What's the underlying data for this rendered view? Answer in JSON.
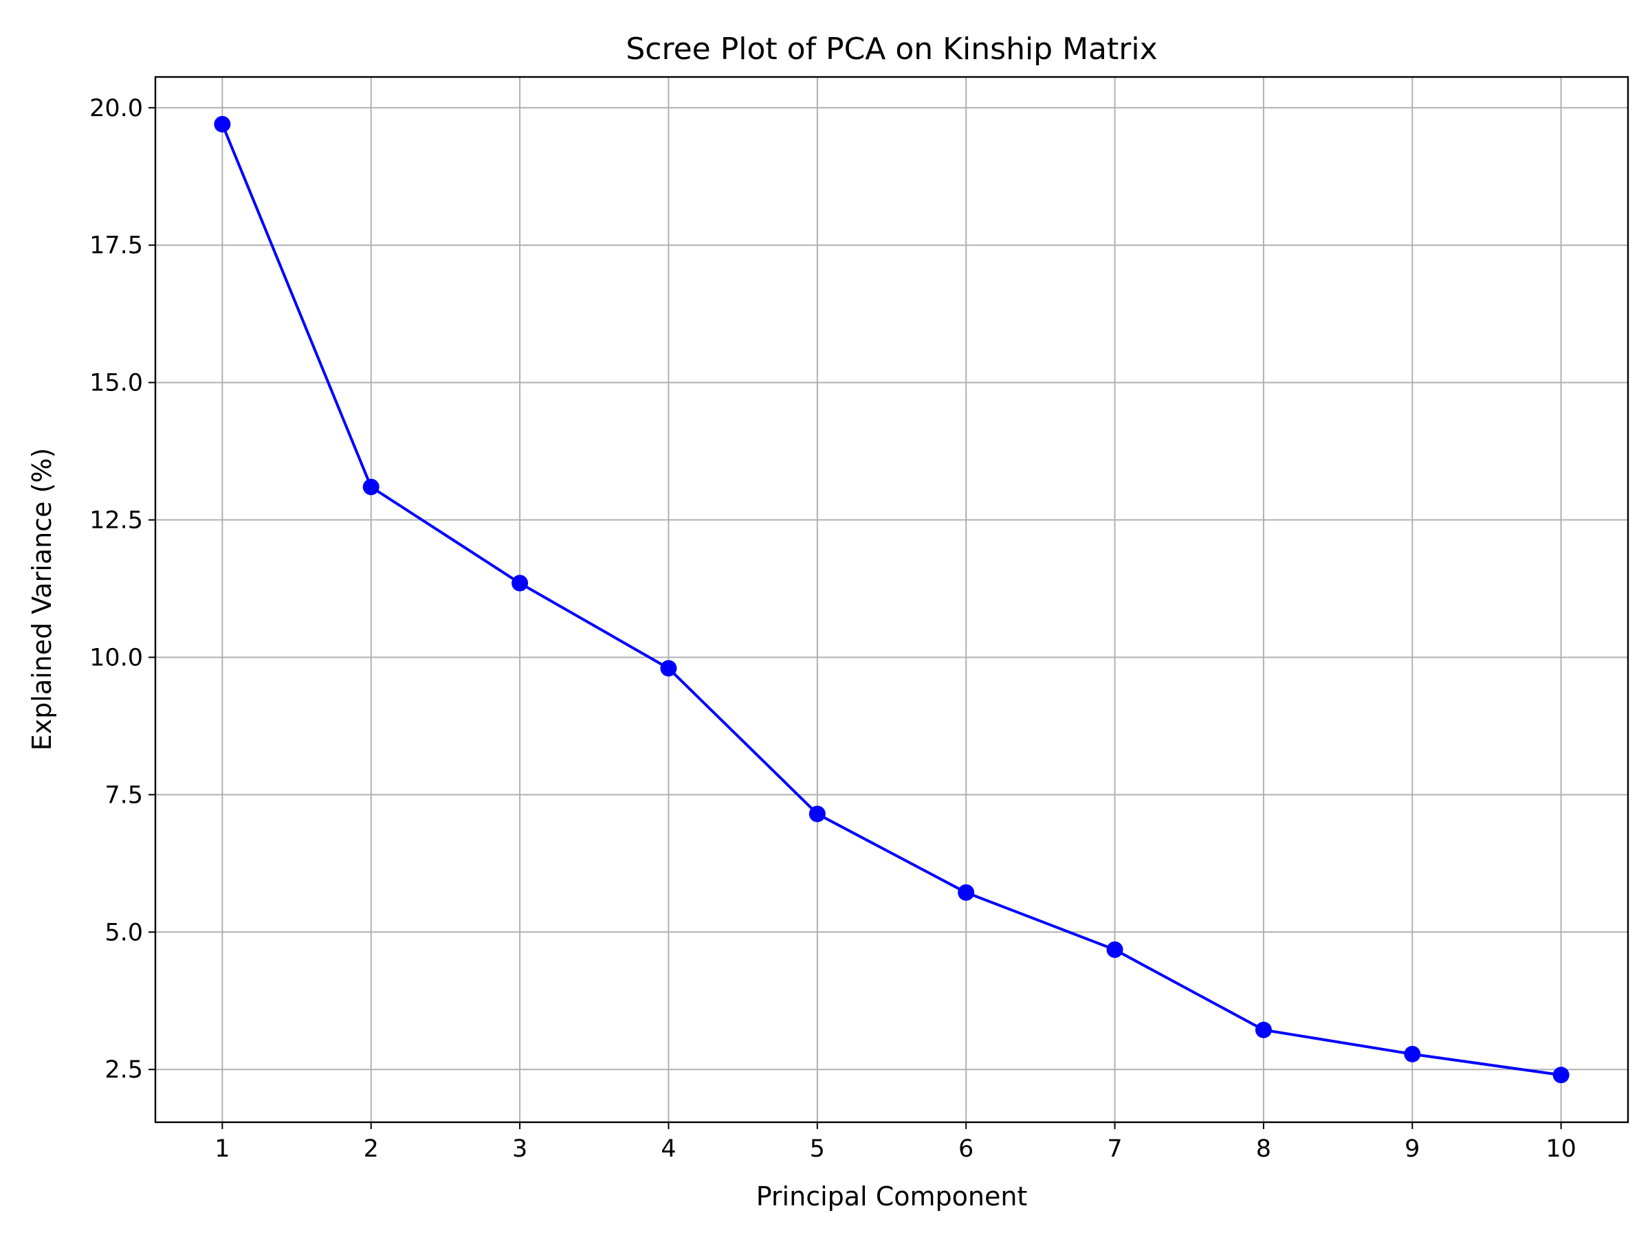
{
  "chart_data": {
    "type": "line",
    "title": "Scree Plot of PCA on Kinship Matrix",
    "xlabel": "Principal Component",
    "ylabel": "Explained Variance (%)",
    "x": [
      1,
      2,
      3,
      4,
      5,
      6,
      7,
      8,
      9,
      10
    ],
    "series": [
      {
        "values": [
          19.7,
          13.1,
          11.35,
          9.8,
          7.15,
          5.72,
          4.68,
          3.22,
          2.78,
          2.4
        ],
        "color": "#0000ff",
        "marker": "circle"
      }
    ],
    "x_ticks": [
      "1",
      "2",
      "3",
      "4",
      "5",
      "6",
      "7",
      "8",
      "9",
      "10"
    ],
    "y_ticks": [
      2.5,
      5.0,
      7.5,
      10.0,
      12.5,
      15.0,
      17.5,
      20.0
    ],
    "y_tick_labels": [
      "2.5",
      "5.0",
      "7.5",
      "10.0",
      "12.5",
      "15.0",
      "17.5",
      "20.0"
    ],
    "xlim": [
      0.55,
      10.45
    ],
    "ylim": [
      1.54,
      20.56
    ],
    "grid": true,
    "grid_color": "#b0b0b0"
  }
}
